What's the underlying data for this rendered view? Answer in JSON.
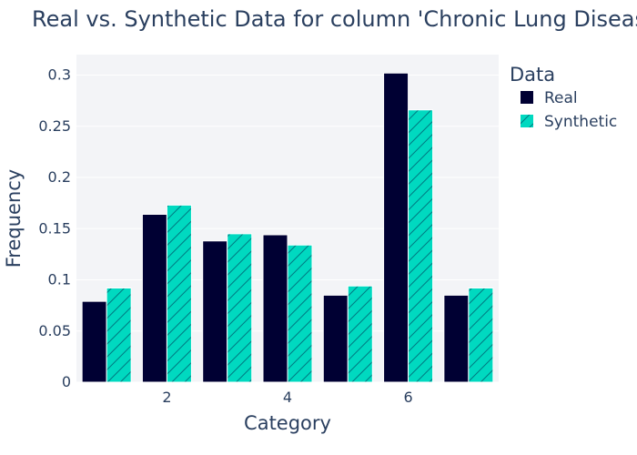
{
  "chart_data": {
    "type": "bar",
    "title": "Real vs. Synthetic Data for column 'Chronic Lung Disease'",
    "xlabel": "Category",
    "ylabel": "Frequency",
    "x": [
      1,
      2,
      3,
      4,
      5,
      6,
      7
    ],
    "xticks": [
      2,
      4,
      6
    ],
    "xtick_labels": [
      "2",
      "4",
      "6"
    ],
    "ylim": [
      0,
      0.32
    ],
    "yticks": [
      0,
      0.05,
      0.1,
      0.15,
      0.2,
      0.25,
      0.3
    ],
    "ytick_labels": [
      "0",
      "0.05",
      "0.1",
      "0.15",
      "0.2",
      "0.25",
      "0.3"
    ],
    "grid": true,
    "legend": {
      "title": "Data",
      "placement": "right"
    },
    "series": [
      {
        "name": "Real",
        "values": [
          0.079,
          0.164,
          0.138,
          0.144,
          0.085,
          0.302,
          0.085
        ],
        "color": "#000033",
        "pattern": "solid"
      },
      {
        "name": "Synthetic",
        "values": [
          0.092,
          0.173,
          0.145,
          0.134,
          0.094,
          0.266,
          0.092
        ],
        "color": "#00d9c0",
        "pattern": "diagonal-hatch"
      }
    ]
  }
}
